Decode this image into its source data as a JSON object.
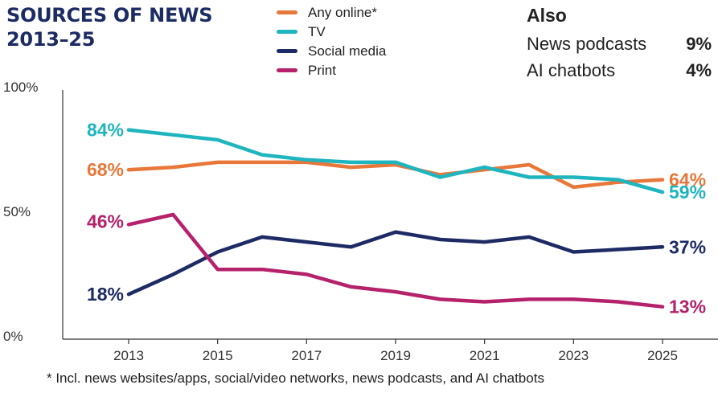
{
  "title_lines": [
    "SOURCES OF NEWS",
    "2013–25"
  ],
  "also": {
    "title": "Also",
    "items": [
      {
        "label": "News podcasts",
        "value": "9%"
      },
      {
        "label": "AI chatbots",
        "value": "4%"
      }
    ]
  },
  "footnote": "* Incl. news websites/apps, social/video networks, news podcasts, and AI chatbots",
  "chart_data": {
    "type": "line",
    "title": "SOURCES OF NEWS 2013–25",
    "x": [
      2013,
      2014,
      2015,
      2016,
      2017,
      2018,
      2019,
      2020,
      2021,
      2022,
      2023,
      2024,
      2025
    ],
    "x_tick_labels": [
      "2013",
      "2015",
      "2017",
      "2019",
      "2021",
      "2023",
      "2025"
    ],
    "y_tick_labels": [
      "100%",
      "50%",
      "0%"
    ],
    "ylim": [
      0,
      100
    ],
    "grid": false,
    "legend_position": "top-center",
    "series": [
      {
        "name": "Any online*",
        "color": "#e8773a",
        "values": [
          68,
          69,
          71,
          71,
          71,
          69,
          70,
          66,
          68,
          70,
          61,
          63,
          64
        ],
        "start_label": "68%",
        "end_label": "64%"
      },
      {
        "name": "TV",
        "color": "#1fb5be",
        "values": [
          84,
          82,
          80,
          74,
          72,
          71,
          71,
          65,
          69,
          65,
          65,
          64,
          59
        ],
        "start_label": "84%",
        "end_label": "59%"
      },
      {
        "name": "Social media",
        "color": "#1d2a63",
        "values": [
          18,
          26,
          35,
          41,
          39,
          37,
          43,
          40,
          39,
          41,
          35,
          36,
          37
        ],
        "start_label": "18%",
        "end_label": "37%"
      },
      {
        "name": "Print",
        "color": "#b5216b",
        "values": [
          46,
          50,
          28,
          28,
          26,
          21,
          19,
          16,
          15,
          16,
          16,
          15,
          13
        ],
        "start_label": "46%",
        "end_label": "13%"
      }
    ]
  }
}
